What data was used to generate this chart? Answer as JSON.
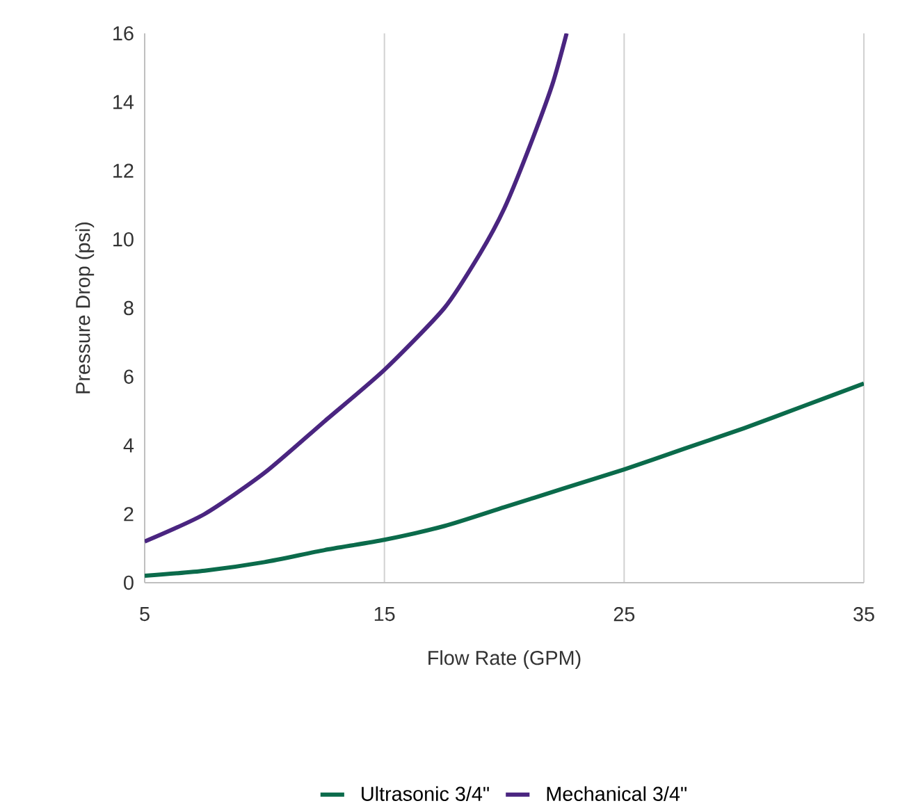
{
  "chart_data": {
    "type": "line",
    "xlabel": "Flow Rate (GPM)",
    "ylabel": "Pressure Drop (psi)",
    "xlim": [
      5,
      35
    ],
    "xticks": [
      5,
      15,
      25,
      35
    ],
    "ylim": [
      0,
      16
    ],
    "yticks": [
      0,
      2,
      4,
      6,
      8,
      10,
      12,
      14,
      16
    ],
    "grid": "x",
    "legend": "bottom",
    "line_style": "solid",
    "marker": "none",
    "series": [
      {
        "name": "Ultrasonic 3/4\"",
        "color": "#0b6b4b",
        "x": [
          5,
          7.5,
          10,
          12.5,
          15,
          17.5,
          20,
          22.5,
          25,
          27.5,
          30,
          32.5,
          35
        ],
        "values": [
          0.2,
          0.35,
          0.6,
          0.95,
          1.25,
          1.65,
          2.2,
          2.75,
          3.3,
          3.9,
          4.5,
          5.15,
          5.8
        ]
      },
      {
        "name": "Mechanical 3/4\"",
        "color": "#4a2580",
        "x": [
          5,
          7.5,
          10,
          12.5,
          15,
          17.5,
          19,
          20,
          21,
          22,
          22.6
        ],
        "values": [
          1.2,
          2.0,
          3.2,
          4.7,
          6.2,
          8.0,
          9.6,
          10.9,
          12.6,
          14.5,
          16
        ]
      }
    ]
  }
}
